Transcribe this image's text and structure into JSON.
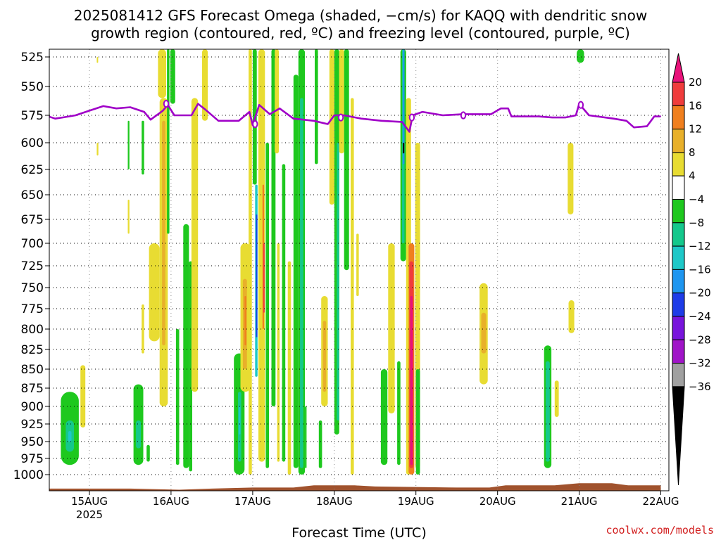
{
  "title": {
    "line1": "2025081412 GFS Forecast Omega (shaded, −cm/s) for KAQQ with dendritic snow",
    "line2": "growth region (contoured, red, ºC) and freezing level (contoured, purple, ºC)"
  },
  "xlabel": "Forecast Time (UTC)",
  "credit": "coolwx.com/models",
  "chart_data": {
    "type": "heatmap",
    "title": "2025081412 GFS Forecast Omega (shaded, −cm/s) for KAQQ with dendritic snow growth region (contoured, red, ºC) and freezing level (contoured, purple, ºC)",
    "xlabel": "Forecast Time (UTC)",
    "ylabel": "",
    "x_range": [
      "2025-08-14 12Z",
      "2025-08-22 00Z"
    ],
    "y_range_hpa": [
      1015,
      520
    ],
    "y_reversed": true,
    "y_ticks": [
      525,
      550,
      575,
      600,
      625,
      650,
      675,
      700,
      725,
      750,
      775,
      800,
      825,
      850,
      875,
      900,
      925,
      950,
      975,
      1000
    ],
    "x_ticks": [
      {
        "day": 15,
        "label": "15AUG",
        "year": "2025"
      },
      {
        "day": 16,
        "label": "16AUG"
      },
      {
        "day": 17,
        "label": "17AUG"
      },
      {
        "day": 18,
        "label": "18AUG"
      },
      {
        "day": 19,
        "label": "19AUG"
      },
      {
        "day": 20,
        "label": "20AUG"
      },
      {
        "day": 21,
        "label": "21AUG"
      },
      {
        "day": 22,
        "label": "22AUG"
      }
    ],
    "grid": true,
    "legend": "colorbar right",
    "colorbar": {
      "labels": [
        "20",
        "16",
        "12",
        "8",
        "4",
        "−4",
        "−8",
        "−12",
        "−16",
        "−20",
        "−24",
        "−28",
        "−32",
        "−36"
      ],
      "bins": [
        {
          "range": ">20",
          "color": "#e8127a"
        },
        {
          "range": "16 to 20",
          "color": "#f03c3c"
        },
        {
          "range": "12 to 16",
          "color": "#f07f1e"
        },
        {
          "range": "8 to 12",
          "color": "#e8b02a"
        },
        {
          "range": "4 to 8",
          "color": "#e8dc32"
        },
        {
          "range": "-4 to 4",
          "color": "#ffffff"
        },
        {
          "range": "-8 to -4",
          "color": "#1ec81e"
        },
        {
          "range": "-12 to -8",
          "color": "#14c88c"
        },
        {
          "range": "-16 to -12",
          "color": "#1ec8c8"
        },
        {
          "range": "-20 to -16",
          "color": "#1e96f0"
        },
        {
          "range": "-24 to -20",
          "color": "#1e3ce8"
        },
        {
          "range": "-28 to -24",
          "color": "#7814dc"
        },
        {
          "range": "-32 to -28",
          "color": "#a014c8"
        },
        {
          "range": "-36 to -32",
          "color": "#a0a0a0"
        },
        {
          "range": "<-36",
          "color": "#000000"
        }
      ]
    },
    "freezing_level": {
      "color": "#a000c8",
      "contour_label": "0",
      "points": [
        {
          "day": 14.5,
          "hpa": 576
        },
        {
          "day": 14.58,
          "hpa": 578
        },
        {
          "day": 14.67,
          "hpa": 577
        },
        {
          "day": 14.83,
          "hpa": 575
        },
        {
          "day": 15.0,
          "hpa": 571
        },
        {
          "day": 15.17,
          "hpa": 567
        },
        {
          "day": 15.33,
          "hpa": 569
        },
        {
          "day": 15.5,
          "hpa": 568
        },
        {
          "day": 15.67,
          "hpa": 572
        },
        {
          "day": 15.75,
          "hpa": 579
        },
        {
          "day": 15.9,
          "hpa": 571
        },
        {
          "day": 15.96,
          "hpa": 566
        },
        {
          "day": 16.04,
          "hpa": 575
        },
        {
          "day": 16.25,
          "hpa": 575
        },
        {
          "day": 16.33,
          "hpa": 565
        },
        {
          "day": 16.42,
          "hpa": 570
        },
        {
          "day": 16.58,
          "hpa": 580
        },
        {
          "day": 16.83,
          "hpa": 580
        },
        {
          "day": 16.96,
          "hpa": 572
        },
        {
          "day": 17.0,
          "hpa": 584
        },
        {
          "day": 17.08,
          "hpa": 566
        },
        {
          "day": 17.21,
          "hpa": 574
        },
        {
          "day": 17.33,
          "hpa": 569
        },
        {
          "day": 17.5,
          "hpa": 578
        },
        {
          "day": 17.75,
          "hpa": 580
        },
        {
          "day": 17.92,
          "hpa": 583
        },
        {
          "day": 18.0,
          "hpa": 575
        },
        {
          "day": 18.12,
          "hpa": 575
        },
        {
          "day": 18.33,
          "hpa": 578
        },
        {
          "day": 18.58,
          "hpa": 580
        },
        {
          "day": 18.83,
          "hpa": 581
        },
        {
          "day": 18.92,
          "hpa": 590
        },
        {
          "day": 18.96,
          "hpa": 575
        },
        {
          "day": 19.08,
          "hpa": 572
        },
        {
          "day": 19.33,
          "hpa": 575
        },
        {
          "day": 19.58,
          "hpa": 574
        },
        {
          "day": 19.92,
          "hpa": 574
        },
        {
          "day": 20.04,
          "hpa": 569
        },
        {
          "day": 20.13,
          "hpa": 569
        },
        {
          "day": 20.17,
          "hpa": 576
        },
        {
          "day": 20.5,
          "hpa": 576
        },
        {
          "day": 20.67,
          "hpa": 577
        },
        {
          "day": 20.83,
          "hpa": 577
        },
        {
          "day": 20.96,
          "hpa": 575
        },
        {
          "day": 21.0,
          "hpa": 565
        },
        {
          "day": 21.12,
          "hpa": 575
        },
        {
          "day": 21.42,
          "hpa": 578
        },
        {
          "day": 21.58,
          "hpa": 580
        },
        {
          "day": 21.67,
          "hpa": 586
        },
        {
          "day": 21.83,
          "hpa": 585
        },
        {
          "day": 21.92,
          "hpa": 576
        },
        {
          "day": 22.0,
          "hpa": 576
        }
      ],
      "label_positions": [
        {
          "day": 15.94,
          "hpa": 565
        },
        {
          "day": 17.03,
          "hpa": 583
        },
        {
          "day": 18.08,
          "hpa": 577
        },
        {
          "day": 18.95,
          "hpa": 577
        },
        {
          "day": 19.58,
          "hpa": 575
        },
        {
          "day": 21.02,
          "hpa": 566
        }
      ]
    },
    "omega_regions": [
      {
        "day0": 14.65,
        "day1": 14.87,
        "p_top": 880,
        "p_bot": 985,
        "value": -8
      },
      {
        "day0": 14.71,
        "day1": 14.81,
        "p_top": 920,
        "p_bot": 965,
        "value": -12
      },
      {
        "day0": 14.74,
        "day1": 14.78,
        "p_top": 935,
        "p_bot": 950,
        "value": -16
      },
      {
        "day0": 14.89,
        "day1": 14.95,
        "p_top": 845,
        "p_bot": 930,
        "value": 4
      },
      {
        "day0": 15.09,
        "day1": 15.1,
        "p_top": 525,
        "p_bot": 530,
        "value": 4
      },
      {
        "day0": 15.09,
        "day1": 15.11,
        "p_top": 600,
        "p_bot": 612,
        "value": 4
      },
      {
        "day0": 15.47,
        "day1": 15.49,
        "p_top": 580,
        "p_bot": 625,
        "value": -8
      },
      {
        "day0": 15.47,
        "day1": 15.49,
        "p_top": 655,
        "p_bot": 690,
        "value": 4
      },
      {
        "day0": 15.54,
        "day1": 15.66,
        "p_top": 870,
        "p_bot": 985,
        "value": -8
      },
      {
        "day0": 15.57,
        "day1": 15.63,
        "p_top": 920,
        "p_bot": 960,
        "value": -12
      },
      {
        "day0": 15.64,
        "day1": 15.67,
        "p_top": 580,
        "p_bot": 630,
        "value": -8
      },
      {
        "day0": 15.64,
        "day1": 15.67,
        "p_top": 770,
        "p_bot": 830,
        "value": 4
      },
      {
        "day0": 15.7,
        "day1": 15.74,
        "p_top": 955,
        "p_bot": 980,
        "value": -8
      },
      {
        "day0": 15.73,
        "day1": 15.86,
        "p_top": 700,
        "p_bot": 815,
        "value": 4
      },
      {
        "day0": 15.84,
        "day1": 15.94,
        "p_top": 520,
        "p_bot": 560,
        "value": 4
      },
      {
        "day0": 15.86,
        "day1": 15.96,
        "p_top": 560,
        "p_bot": 900,
        "value": 4
      },
      {
        "day0": 15.89,
        "day1": 15.93,
        "p_top": 580,
        "p_bot": 820,
        "value": 8
      },
      {
        "day0": 15.95,
        "day1": 15.98,
        "p_top": 520,
        "p_bot": 690,
        "value": -8
      },
      {
        "day0": 15.99,
        "day1": 16.05,
        "p_top": 520,
        "p_bot": 565,
        "value": -8
      },
      {
        "day0": 16.06,
        "day1": 16.1,
        "p_top": 800,
        "p_bot": 985,
        "value": -8
      },
      {
        "day0": 16.15,
        "day1": 16.22,
        "p_top": 680,
        "p_bot": 990,
        "value": -8
      },
      {
        "day0": 16.22,
        "day1": 16.26,
        "p_top": 720,
        "p_bot": 995,
        "value": -8
      },
      {
        "day0": 16.25,
        "day1": 16.33,
        "p_top": 560,
        "p_bot": 880,
        "value": 4
      },
      {
        "day0": 16.38,
        "day1": 16.45,
        "p_top": 520,
        "p_bot": 580,
        "value": 4
      },
      {
        "day0": 16.77,
        "day1": 16.9,
        "p_top": 830,
        "p_bot": 1000,
        "value": -8
      },
      {
        "day0": 16.82,
        "day1": 16.86,
        "p_top": 880,
        "p_bot": 980,
        "value": -12
      },
      {
        "day0": 16.83,
        "day1": 16.85,
        "p_top": 900,
        "p_bot": 940,
        "value": -16
      },
      {
        "day0": 16.85,
        "day1": 16.97,
        "p_top": 700,
        "p_bot": 880,
        "value": 4
      },
      {
        "day0": 16.88,
        "day1": 16.93,
        "p_top": 740,
        "p_bot": 850,
        "value": 8
      },
      {
        "day0": 16.9,
        "day1": 16.92,
        "p_top": 760,
        "p_bot": 820,
        "value": 12
      },
      {
        "day0": 16.95,
        "day1": 16.99,
        "p_top": 520,
        "p_bot": 1000,
        "value": 4
      },
      {
        "day0": 17.0,
        "day1": 17.05,
        "p_top": 520,
        "p_bot": 640,
        "value": -8
      },
      {
        "day0": 17.03,
        "day1": 17.06,
        "p_top": 640,
        "p_bot": 860,
        "value": -16
      },
      {
        "day0": 17.04,
        "day1": 17.05,
        "p_top": 670,
        "p_bot": 810,
        "value": -24
      },
      {
        "day0": 17.07,
        "day1": 17.15,
        "p_top": 520,
        "p_bot": 980,
        "value": 4
      },
      {
        "day0": 17.12,
        "day1": 17.14,
        "p_top": 640,
        "p_bot": 800,
        "value": 12
      },
      {
        "day0": 17.13,
        "day1": 17.14,
        "p_top": 700,
        "p_bot": 780,
        "value": 16
      },
      {
        "day0": 17.16,
        "day1": 17.2,
        "p_top": 600,
        "p_bot": 990,
        "value": -8
      },
      {
        "day0": 17.23,
        "day1": 17.28,
        "p_top": 520,
        "p_bot": 900,
        "value": -8
      },
      {
        "day0": 17.27,
        "day1": 17.32,
        "p_top": 520,
        "p_bot": 610,
        "value": 4
      },
      {
        "day0": 17.3,
        "day1": 17.33,
        "p_top": 700,
        "p_bot": 980,
        "value": 4
      },
      {
        "day0": 17.36,
        "day1": 17.4,
        "p_top": 620,
        "p_bot": 980,
        "value": -8
      },
      {
        "day0": 17.43,
        "day1": 17.47,
        "p_top": 720,
        "p_bot": 1000,
        "value": 4
      },
      {
        "day0": 17.5,
        "day1": 17.56,
        "p_top": 540,
        "p_bot": 990,
        "value": -8
      },
      {
        "day0": 17.56,
        "day1": 17.64,
        "p_top": 520,
        "p_bot": 1000,
        "value": -8
      },
      {
        "day0": 17.58,
        "day1": 17.62,
        "p_top": 560,
        "p_bot": 990,
        "value": -12
      },
      {
        "day0": 17.64,
        "day1": 17.66,
        "p_top": 900,
        "p_bot": 990,
        "value": -8
      },
      {
        "day0": 17.76,
        "day1": 17.8,
        "p_top": 520,
        "p_bot": 620,
        "value": -8
      },
      {
        "day0": 17.81,
        "day1": 17.85,
        "p_top": 920,
        "p_bot": 990,
        "value": -8
      },
      {
        "day0": 17.84,
        "day1": 17.92,
        "p_top": 760,
        "p_bot": 900,
        "value": 4
      },
      {
        "day0": 17.86,
        "day1": 17.9,
        "p_top": 790,
        "p_bot": 880,
        "value": 8
      },
      {
        "day0": 17.94,
        "day1": 18.0,
        "p_top": 520,
        "p_bot": 660,
        "value": 4
      },
      {
        "day0": 18.0,
        "day1": 18.06,
        "p_top": 520,
        "p_bot": 940,
        "value": -8
      },
      {
        "day0": 18.03,
        "day1": 18.06,
        "p_top": 600,
        "p_bot": 920,
        "value": -12
      },
      {
        "day0": 18.06,
        "day1": 18.12,
        "p_top": 520,
        "p_bot": 610,
        "value": 4
      },
      {
        "day0": 18.12,
        "day1": 18.18,
        "p_top": 520,
        "p_bot": 730,
        "value": -8
      },
      {
        "day0": 18.2,
        "day1": 18.24,
        "p_top": 560,
        "p_bot": 1000,
        "value": 4
      },
      {
        "day0": 18.27,
        "day1": 18.3,
        "p_top": 690,
        "p_bot": 760,
        "value": 4
      },
      {
        "day0": 18.57,
        "day1": 18.65,
        "p_top": 850,
        "p_bot": 985,
        "value": -8
      },
      {
        "day0": 18.66,
        "day1": 18.74,
        "p_top": 700,
        "p_bot": 910,
        "value": 4
      },
      {
        "day0": 18.77,
        "day1": 18.81,
        "p_top": 840,
        "p_bot": 985,
        "value": -8
      },
      {
        "day0": 18.81,
        "day1": 18.88,
        "p_top": 520,
        "p_bot": 720,
        "value": -8
      },
      {
        "day0": 18.83,
        "day1": 18.86,
        "p_top": 520,
        "p_bot": 700,
        "value": -12
      },
      {
        "day0": 18.84,
        "day1": 18.86,
        "p_top": 520,
        "p_bot": 620,
        "value": -20
      },
      {
        "day0": 18.84,
        "day1": 18.85,
        "p_top": 600,
        "p_bot": 610,
        "value": -36
      },
      {
        "day0": 18.88,
        "day1": 18.94,
        "p_top": 560,
        "p_bot": 1000,
        "value": 4
      },
      {
        "day0": 18.91,
        "day1": 18.98,
        "p_top": 700,
        "p_bot": 1000,
        "value": 12
      },
      {
        "day0": 18.92,
        "day1": 18.97,
        "p_top": 720,
        "p_bot": 990,
        "value": 16
      },
      {
        "day0": 18.93,
        "day1": 18.96,
        "p_top": 760,
        "p_bot": 985,
        "value": 20
      },
      {
        "day0": 18.99,
        "day1": 19.05,
        "p_top": 600,
        "p_bot": 990,
        "value": 4
      },
      {
        "day0": 19.0,
        "day1": 19.05,
        "p_top": 850,
        "p_bot": 1000,
        "value": -8
      },
      {
        "day0": 19.78,
        "day1": 19.88,
        "p_top": 745,
        "p_bot": 870,
        "value": 4
      },
      {
        "day0": 19.8,
        "day1": 19.86,
        "p_top": 780,
        "p_bot": 830,
        "value": 8
      },
      {
        "day0": 20.57,
        "day1": 20.66,
        "p_top": 820,
        "p_bot": 990,
        "value": -8
      },
      {
        "day0": 20.59,
        "day1": 20.64,
        "p_top": 840,
        "p_bot": 980,
        "value": -12
      },
      {
        "day0": 20.7,
        "day1": 20.75,
        "p_top": 865,
        "p_bot": 915,
        "value": 4
      },
      {
        "day0": 20.86,
        "day1": 20.93,
        "p_top": 600,
        "p_bot": 670,
        "value": 4
      },
      {
        "day0": 20.87,
        "day1": 20.94,
        "p_top": 765,
        "p_bot": 805,
        "value": 4
      },
      {
        "day0": 20.97,
        "day1": 21.06,
        "p_top": 520,
        "p_bot": 530,
        "value": -8
      }
    ],
    "ground": {
      "color": "#a0522d",
      "points": [
        {
          "day": 14.5,
          "hpa": 1013
        },
        {
          "day": 15.5,
          "hpa": 1013
        },
        {
          "day": 16.1,
          "hpa": 1014
        },
        {
          "day": 16.5,
          "hpa": 1013
        },
        {
          "day": 17.0,
          "hpa": 1012
        },
        {
          "day": 17.5,
          "hpa": 1012
        },
        {
          "day": 17.75,
          "hpa": 1010
        },
        {
          "day": 18.25,
          "hpa": 1010
        },
        {
          "day": 18.5,
          "hpa": 1011
        },
        {
          "day": 19.5,
          "hpa": 1012
        },
        {
          "day": 19.9,
          "hpa": 1012
        },
        {
          "day": 20.1,
          "hpa": 1010
        },
        {
          "day": 20.7,
          "hpa": 1010
        },
        {
          "day": 21.0,
          "hpa": 1008
        },
        {
          "day": 21.4,
          "hpa": 1008
        },
        {
          "day": 21.6,
          "hpa": 1010
        },
        {
          "day": 22.0,
          "hpa": 1010
        }
      ]
    }
  }
}
